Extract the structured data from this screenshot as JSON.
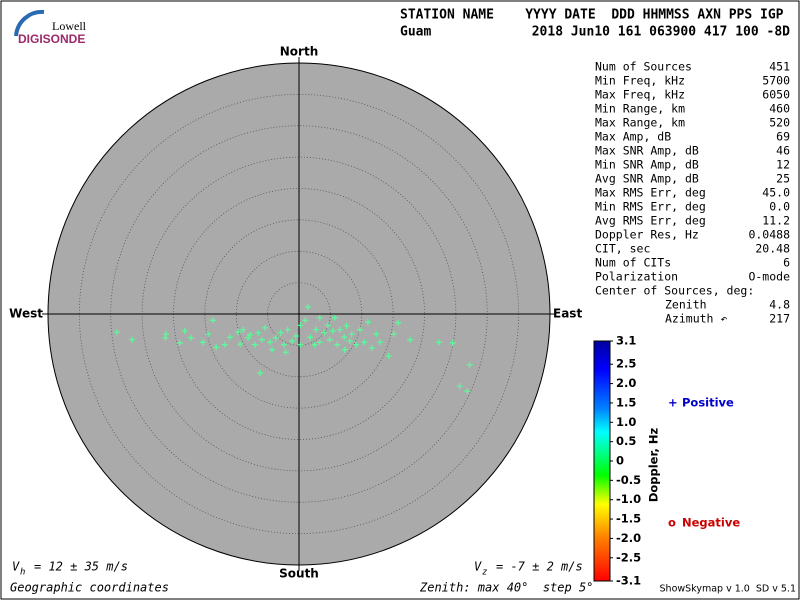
{
  "logo": {
    "top": "Lowell",
    "bottom": "DIGISONDE"
  },
  "header": {
    "columns": "STATION NAME    YYYY DATE  DDD HHMMSS AXN PPS IGP",
    "station": "Guam",
    "values": "2018 Jun10 161 063900 417 100 -8D"
  },
  "chart_data": {
    "type": "scatter",
    "directions": {
      "north": "North",
      "south": "South",
      "east": "East",
      "west": "West"
    },
    "rlim": [
      0,
      40
    ],
    "rticks": [
      5,
      10,
      15,
      20,
      25,
      30,
      35,
      40
    ],
    "color": "#55ff99",
    "x": [
      -29.0,
      -26.6,
      -21.2,
      -21.3,
      -19.0,
      -17.2,
      -15.3,
      -13.7,
      -13.2,
      -11.0,
      -9.4,
      -8.9,
      -8.1,
      -7.0,
      -6.5,
      -5.9,
      -6.2,
      -5.4,
      -4.6,
      -4.3,
      -3.7,
      -2.9,
      -2.4,
      -1.8,
      -1.1,
      -0.5,
      0.2,
      1.0,
      1.4,
      1.8,
      2.7,
      3.3,
      4.0,
      4.6,
      4.9,
      5.4,
      6.1,
      6.5,
      7.2,
      7.6,
      8.1,
      8.4,
      9.1,
      9.7,
      10.4,
      11.0,
      11.6,
      12.3,
      12.9,
      14.3,
      15.1,
      15.8,
      17.7,
      22.3,
      24.5,
      25.6,
      26.8,
      27.2,
      -7.8,
      -9.7,
      -11.8,
      -14.5,
      -18.2,
      3.3,
      5.7,
      7.3,
      -2.1,
      0.2,
      2.5
    ],
    "y": [
      -2.9,
      -4.1,
      -3.2,
      -3.8,
      -4.6,
      -3.8,
      -4.5,
      -1.0,
      -5.3,
      -3.7,
      -4.8,
      -2.5,
      -3.8,
      -4.9,
      -3.0,
      -4.1,
      -9.4,
      -2.2,
      -4.5,
      -5.7,
      -3.8,
      -3.0,
      -4.9,
      -2.5,
      -4.3,
      -3.5,
      -1.8,
      -1.0,
      1.1,
      -3.7,
      -2.5,
      -4.5,
      -3.0,
      -1.8,
      -4.1,
      -2.7,
      -4.9,
      -2.5,
      -3.7,
      -1.9,
      -4.3,
      -3.2,
      -4.9,
      -2.5,
      -4.5,
      -1.3,
      -5.4,
      -3.2,
      -4.5,
      -6.7,
      -3.2,
      -1.4,
      -4.1,
      -4.5,
      -4.6,
      -11.5,
      -12.3,
      -8.1,
      -3.3,
      -2.9,
      -4.9,
      -3.2,
      -2.7,
      -0.6,
      -0.6,
      -5.7,
      -6.1,
      -4.9,
      -4.9
    ]
  },
  "stats": {
    "rows": [
      [
        "Num of Sources",
        "451"
      ],
      [
        "Min Freq, kHz",
        "5700"
      ],
      [
        "Max Freq, kHz",
        "6050"
      ],
      [
        "Min Range, km",
        "460"
      ],
      [
        "Max Range, km",
        "520"
      ],
      [
        "Max Amp, dB",
        "69"
      ],
      [
        "Max SNR Amp, dB",
        "46"
      ],
      [
        "Min SNR Amp, dB",
        "12"
      ],
      [
        "Avg SNR Amp, dB",
        "25"
      ],
      [
        "Max RMS Err, deg",
        "45.0"
      ],
      [
        "Min RMS Err, deg",
        "0.0"
      ],
      [
        "Avg RMS Err, deg",
        "11.2"
      ],
      [
        "Doppler Res, Hz",
        "0.0488"
      ],
      [
        "CIT, sec",
        "20.48"
      ],
      [
        "Num of CITs",
        "6"
      ],
      [
        "Polarization",
        "O-mode"
      ]
    ],
    "center": {
      "title": "Center of Sources, deg:",
      "rows": [
        [
          "Zenith",
          "4.8"
        ],
        [
          "Azimuth ↶",
          "217"
        ]
      ]
    }
  },
  "colorbar": {
    "label": "Doppler, Hz",
    "lim": [
      -3.1,
      3.1
    ],
    "ticks": [
      3.1,
      2.5,
      {
        "value": 2,
        "label": "2.0"
      },
      1.5,
      {
        "value": 1,
        "label": "1.0"
      },
      0.5,
      0,
      -0.5,
      {
        "value": -1,
        "label": "-1.0"
      },
      -1.5,
      {
        "value": -2,
        "label": "-2.0"
      },
      -2.5,
      -3.1
    ]
  },
  "legend": [
    {
      "symbol": "+",
      "name": "Positive",
      "color": "#0000cc"
    },
    {
      "symbol": "o",
      "name": "Negative",
      "color": "#cc0000"
    }
  ],
  "footer": {
    "vh": {
      "symbol": "V",
      "sub": "h",
      "text": "= 12 ± 35 m/s"
    },
    "vz": {
      "symbol": "V",
      "sub": "z",
      "text": "= -7 ± 2 m/s"
    },
    "coords": "Geographic coordinates",
    "zenith": "Zenith: max 40°  step 5°",
    "version": "ShowSkymap v 1.0  SD v 5.1"
  }
}
